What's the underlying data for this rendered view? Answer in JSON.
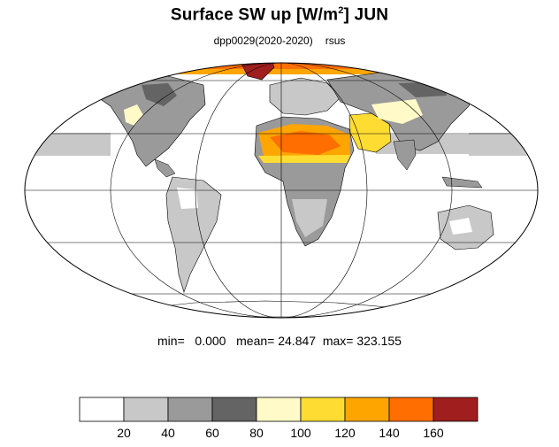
{
  "title": {
    "main": "Surface SW up [W/m",
    "sup": "2",
    "after": "]  JUN"
  },
  "subtitle": {
    "run": "dpp0029(2020-2020)",
    "variable": "rsus"
  },
  "stats": {
    "min_label": "min=",
    "min_value": "0.000",
    "mean_label": "mean=",
    "mean_value": "24.847",
    "max_label": "max=",
    "max_value": "323.155"
  },
  "map": {
    "projection": "mollweide",
    "graticule": true,
    "legend_position": "bottom"
  },
  "colorbar": {
    "colors": [
      "#ffffff",
      "#c8c8c8",
      "#9a9a9a",
      "#646464",
      "#fffac8",
      "#ffdc32",
      "#ffa500",
      "#ff6e00",
      "#a01e1e"
    ],
    "labels": [
      "20",
      "40",
      "60",
      "80",
      "100",
      "120",
      "140",
      "160"
    ]
  }
}
